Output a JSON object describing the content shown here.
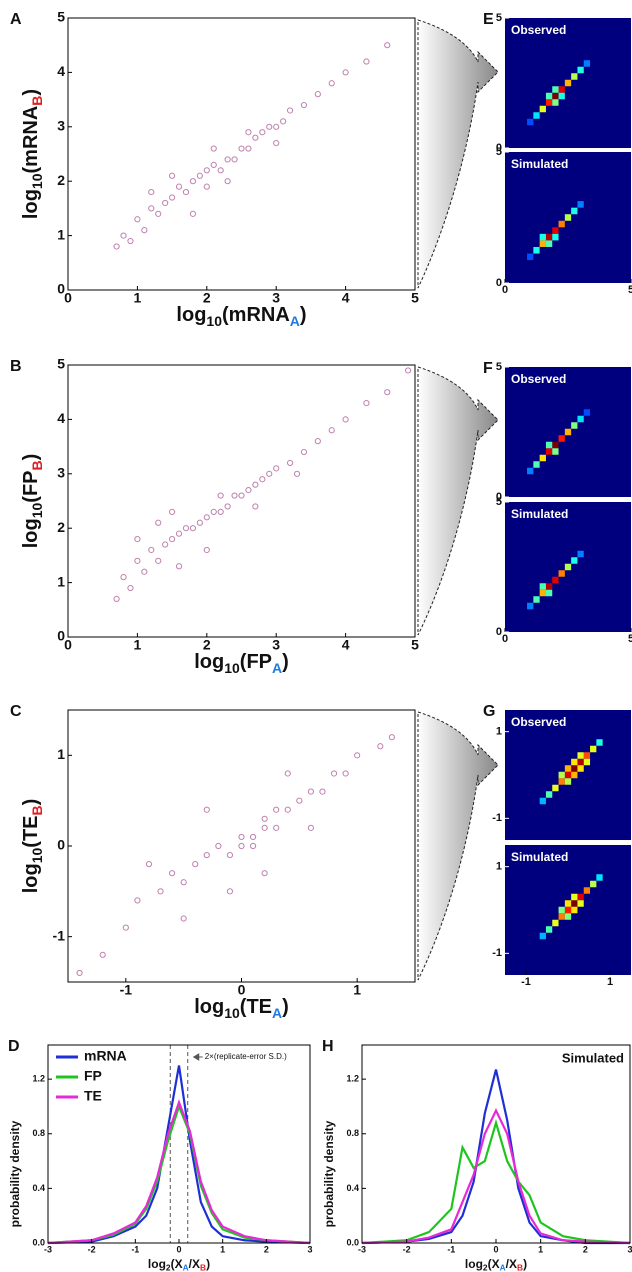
{
  "chart_data": [
    {
      "type": "scatter",
      "panel": "A",
      "xlim": [
        0,
        5
      ],
      "ylim": [
        0,
        5
      ],
      "xticks": [
        0,
        1,
        2,
        3,
        4,
        5
      ],
      "yticks": [
        0,
        1,
        2,
        3,
        4,
        5
      ],
      "color": "#8b1a6b",
      "x_label": [
        {
          "text": "log"
        },
        {
          "text": "10",
          "sub": true
        },
        {
          "text": "(mRNA"
        },
        {
          "text": "A",
          "sub": true,
          "color": "#1e7be0"
        },
        {
          "text": ")"
        }
      ],
      "y_label": [
        {
          "text": "log"
        },
        {
          "text": "10",
          "sub": true
        },
        {
          "text": "(mRNA"
        },
        {
          "text": "B",
          "sub": true,
          "color": "#e02020"
        },
        {
          "text": ")"
        }
      ],
      "x": [
        0.7,
        0.8,
        0.9,
        1.0,
        1.1,
        1.2,
        1.3,
        1.4,
        1.5,
        1.6,
        1.7,
        1.8,
        1.9,
        2.0,
        2.0,
        2.1,
        2.2,
        2.3,
        2.4,
        2.5,
        2.6,
        2.7,
        2.8,
        2.9,
        3.0,
        3.1,
        3.2,
        3.4,
        3.6,
        3.8,
        4.0,
        4.3,
        4.6,
        1.2,
        1.5,
        2.3,
        2.6,
        1.8,
        3.0,
        2.1
      ],
      "y": [
        0.8,
        1.0,
        0.9,
        1.3,
        1.1,
        1.5,
        1.4,
        1.6,
        1.7,
        1.9,
        1.8,
        2.0,
        2.1,
        2.2,
        1.9,
        2.3,
        2.2,
        2.4,
        2.4,
        2.6,
        2.6,
        2.8,
        2.9,
        3.0,
        3.0,
        3.1,
        3.3,
        3.4,
        3.6,
        3.8,
        4.0,
        4.2,
        4.5,
        1.8,
        2.1,
        2.0,
        2.9,
        1.4,
        2.7,
        2.6
      ]
    },
    {
      "type": "heatmap",
      "panel": "E",
      "title": "Observed",
      "xlim": [
        0,
        5
      ],
      "ylim": [
        0,
        5
      ],
      "yticks": [
        0,
        5
      ],
      "cells": [
        {
          "x": 1.0,
          "y": 1.0,
          "v": 0.2
        },
        {
          "x": 1.25,
          "y": 1.25,
          "v": 0.35
        },
        {
          "x": 1.5,
          "y": 1.5,
          "v": 0.6
        },
        {
          "x": 1.75,
          "y": 1.75,
          "v": 0.85
        },
        {
          "x": 2.0,
          "y": 2.0,
          "v": 1.0
        },
        {
          "x": 2.25,
          "y": 2.25,
          "v": 0.9
        },
        {
          "x": 2.5,
          "y": 2.5,
          "v": 0.7
        },
        {
          "x": 2.75,
          "y": 2.75,
          "v": 0.55
        },
        {
          "x": 3.0,
          "y": 3.0,
          "v": 0.4
        },
        {
          "x": 3.25,
          "y": 3.25,
          "v": 0.25
        },
        {
          "x": 1.75,
          "y": 2.0,
          "v": 0.45
        },
        {
          "x": 2.0,
          "y": 1.75,
          "v": 0.5
        },
        {
          "x": 2.25,
          "y": 2.0,
          "v": 0.4
        },
        {
          "x": 2.0,
          "y": 2.25,
          "v": 0.45
        }
      ]
    },
    {
      "type": "heatmap",
      "title": "Simulated",
      "xlim": [
        0,
        5
      ],
      "ylim": [
        0,
        5
      ],
      "yticks": [
        0,
        5
      ],
      "xticks": [
        0,
        5
      ],
      "cells": [
        {
          "x": 1.0,
          "y": 1.0,
          "v": 0.2
        },
        {
          "x": 1.25,
          "y": 1.25,
          "v": 0.4
        },
        {
          "x": 1.5,
          "y": 1.5,
          "v": 0.7
        },
        {
          "x": 1.75,
          "y": 1.75,
          "v": 0.95
        },
        {
          "x": 2.0,
          "y": 2.0,
          "v": 0.9
        },
        {
          "x": 2.25,
          "y": 2.25,
          "v": 0.75
        },
        {
          "x": 2.5,
          "y": 2.5,
          "v": 0.55
        },
        {
          "x": 2.75,
          "y": 2.75,
          "v": 0.4
        },
        {
          "x": 3.0,
          "y": 3.0,
          "v": 0.25
        },
        {
          "x": 1.5,
          "y": 1.75,
          "v": 0.4
        },
        {
          "x": 1.75,
          "y": 1.5,
          "v": 0.45
        },
        {
          "x": 2.0,
          "y": 1.75,
          "v": 0.4
        }
      ]
    },
    {
      "type": "scatter",
      "panel": "B",
      "xlim": [
        0,
        5
      ],
      "ylim": [
        0,
        5
      ],
      "xticks": [
        0,
        1,
        2,
        3,
        4,
        5
      ],
      "yticks": [
        0,
        1,
        2,
        3,
        4,
        5
      ],
      "color": "#8b1a6b",
      "x_label": [
        {
          "text": "log"
        },
        {
          "text": "10",
          "sub": true
        },
        {
          "text": "(FP"
        },
        {
          "text": "A",
          "sub": true,
          "color": "#1e7be0"
        },
        {
          "text": ")"
        }
      ],
      "y_label": [
        {
          "text": "log"
        },
        {
          "text": "10",
          "sub": true
        },
        {
          "text": "(FP"
        },
        {
          "text": "B",
          "sub": true,
          "color": "#e02020"
        },
        {
          "text": ")"
        }
      ],
      "x": [
        0.7,
        0.8,
        0.9,
        1.0,
        1.1,
        1.2,
        1.3,
        1.4,
        1.5,
        1.6,
        1.7,
        1.8,
        1.9,
        2.0,
        2.1,
        2.2,
        2.3,
        2.4,
        2.5,
        2.6,
        2.7,
        2.8,
        2.9,
        3.0,
        3.2,
        3.4,
        3.6,
        3.8,
        4.0,
        4.3,
        4.6,
        4.9,
        1.0,
        1.3,
        1.6,
        2.2,
        2.7,
        1.5,
        3.3,
        2.0
      ],
      "y": [
        0.7,
        1.1,
        0.9,
        1.4,
        1.2,
        1.6,
        1.4,
        1.7,
        1.8,
        1.9,
        2.0,
        2.0,
        2.1,
        2.2,
        2.3,
        2.3,
        2.4,
        2.6,
        2.6,
        2.7,
        2.8,
        2.9,
        3.0,
        3.1,
        3.2,
        3.4,
        3.6,
        3.8,
        4.0,
        4.3,
        4.5,
        4.9,
        1.8,
        2.1,
        1.3,
        2.6,
        2.4,
        2.3,
        3.0,
        1.6
      ]
    },
    {
      "type": "heatmap",
      "panel": "F",
      "title": "Observed",
      "xlim": [
        0,
        5
      ],
      "ylim": [
        0,
        5
      ],
      "yticks": [
        0,
        5
      ],
      "cells": [
        {
          "x": 1.0,
          "y": 1.0,
          "v": 0.25
        },
        {
          "x": 1.25,
          "y": 1.25,
          "v": 0.45
        },
        {
          "x": 1.5,
          "y": 1.5,
          "v": 0.65
        },
        {
          "x": 1.75,
          "y": 1.75,
          "v": 0.9
        },
        {
          "x": 2.0,
          "y": 2.0,
          "v": 1.0
        },
        {
          "x": 2.25,
          "y": 2.25,
          "v": 0.85
        },
        {
          "x": 2.5,
          "y": 2.5,
          "v": 0.7
        },
        {
          "x": 2.75,
          "y": 2.75,
          "v": 0.5
        },
        {
          "x": 3.0,
          "y": 3.0,
          "v": 0.35
        },
        {
          "x": 3.25,
          "y": 3.25,
          "v": 0.2
        },
        {
          "x": 2.0,
          "y": 1.75,
          "v": 0.5
        },
        {
          "x": 1.75,
          "y": 2.0,
          "v": 0.45
        }
      ]
    },
    {
      "type": "heatmap",
      "title": "Simulated",
      "xlim": [
        0,
        5
      ],
      "ylim": [
        0,
        5
      ],
      "yticks": [
        0,
        5
      ],
      "xticks": [
        0,
        5
      ],
      "cells": [
        {
          "x": 1.0,
          "y": 1.0,
          "v": 0.25
        },
        {
          "x": 1.25,
          "y": 1.25,
          "v": 0.45
        },
        {
          "x": 1.5,
          "y": 1.5,
          "v": 0.7
        },
        {
          "x": 1.75,
          "y": 1.75,
          "v": 0.95
        },
        {
          "x": 2.0,
          "y": 2.0,
          "v": 0.9
        },
        {
          "x": 2.25,
          "y": 2.25,
          "v": 0.75
        },
        {
          "x": 2.5,
          "y": 2.5,
          "v": 0.55
        },
        {
          "x": 2.75,
          "y": 2.75,
          "v": 0.4
        },
        {
          "x": 3.0,
          "y": 3.0,
          "v": 0.25
        },
        {
          "x": 1.5,
          "y": 1.75,
          "v": 0.45
        },
        {
          "x": 1.75,
          "y": 1.5,
          "v": 0.45
        }
      ]
    },
    {
      "type": "scatter",
      "panel": "C",
      "xlim": [
        -1.5,
        1.5
      ],
      "ylim": [
        -1.5,
        1.5
      ],
      "xticks": [
        -1,
        0,
        1
      ],
      "yticks": [
        -1,
        0,
        1
      ],
      "color": "#8b1a6b",
      "x_label": [
        {
          "text": "log"
        },
        {
          "text": "10",
          "sub": true
        },
        {
          "text": "(TE"
        },
        {
          "text": "A",
          "sub": true,
          "color": "#1e7be0"
        },
        {
          "text": ")"
        }
      ],
      "y_label": [
        {
          "text": "log"
        },
        {
          "text": "10",
          "sub": true
        },
        {
          "text": "(TE"
        },
        {
          "text": "B",
          "sub": true,
          "color": "#e02020"
        },
        {
          "text": ")"
        }
      ],
      "x": [
        -1.4,
        -1.2,
        -1.0,
        -0.9,
        -0.7,
        -0.6,
        -0.5,
        -0.4,
        -0.3,
        -0.2,
        -0.1,
        0.0,
        0.0,
        0.1,
        0.1,
        0.2,
        0.2,
        0.3,
        0.3,
        0.4,
        0.5,
        0.6,
        0.7,
        0.8,
        0.9,
        1.0,
        1.2,
        -0.8,
        -0.5,
        0.2,
        0.6,
        -0.3,
        0.4,
        1.3,
        -0.1
      ],
      "y": [
        -1.4,
        -1.2,
        -0.9,
        -0.6,
        -0.5,
        -0.3,
        -0.4,
        -0.2,
        -0.1,
        0.0,
        -0.1,
        0.0,
        0.1,
        0.1,
        0.0,
        0.2,
        0.3,
        0.2,
        0.4,
        0.4,
        0.5,
        0.6,
        0.6,
        0.8,
        0.8,
        1.0,
        1.1,
        -0.2,
        -0.8,
        -0.3,
        0.2,
        0.4,
        0.8,
        1.2,
        -0.5
      ]
    },
    {
      "type": "heatmap",
      "panel": "G",
      "title": "Observed",
      "xlim": [
        -1.5,
        1.5
      ],
      "ylim": [
        -1.5,
        1.5
      ],
      "yticks": [
        -1,
        1
      ],
      "cells": [
        {
          "x": -0.6,
          "y": -0.6,
          "v": 0.3
        },
        {
          "x": -0.45,
          "y": -0.45,
          "v": 0.45
        },
        {
          "x": -0.3,
          "y": -0.3,
          "v": 0.6
        },
        {
          "x": -0.15,
          "y": -0.15,
          "v": 0.75
        },
        {
          "x": 0.0,
          "y": 0.0,
          "v": 0.9
        },
        {
          "x": 0.15,
          "y": 0.15,
          "v": 1.0
        },
        {
          "x": 0.3,
          "y": 0.3,
          "v": 0.95
        },
        {
          "x": 0.45,
          "y": 0.45,
          "v": 0.8
        },
        {
          "x": 0.6,
          "y": 0.6,
          "v": 0.6
        },
        {
          "x": 0.75,
          "y": 0.75,
          "v": 0.4
        },
        {
          "x": 0.0,
          "y": 0.15,
          "v": 0.7
        },
        {
          "x": 0.15,
          "y": 0.0,
          "v": 0.7
        },
        {
          "x": 0.3,
          "y": 0.15,
          "v": 0.65
        },
        {
          "x": 0.15,
          "y": 0.3,
          "v": 0.65
        },
        {
          "x": -0.15,
          "y": 0.0,
          "v": 0.55
        },
        {
          "x": 0.0,
          "y": -0.15,
          "v": 0.55
        },
        {
          "x": 0.45,
          "y": 0.3,
          "v": 0.6
        },
        {
          "x": 0.3,
          "y": 0.45,
          "v": 0.6
        }
      ]
    },
    {
      "type": "heatmap",
      "title": "Simulated",
      "xlim": [
        -1.5,
        1.5
      ],
      "ylim": [
        -1.5,
        1.5
      ],
      "yticks": [
        -1,
        1
      ],
      "xticks": [
        -1,
        1
      ],
      "cells": [
        {
          "x": -0.6,
          "y": -0.6,
          "v": 0.3
        },
        {
          "x": -0.45,
          "y": -0.45,
          "v": 0.45
        },
        {
          "x": -0.3,
          "y": -0.3,
          "v": 0.6
        },
        {
          "x": -0.15,
          "y": -0.15,
          "v": 0.75
        },
        {
          "x": 0.0,
          "y": 0.0,
          "v": 0.85
        },
        {
          "x": 0.15,
          "y": 0.15,
          "v": 1.0
        },
        {
          "x": 0.3,
          "y": 0.3,
          "v": 0.9
        },
        {
          "x": 0.45,
          "y": 0.45,
          "v": 0.75
        },
        {
          "x": 0.6,
          "y": 0.6,
          "v": 0.55
        },
        {
          "x": 0.75,
          "y": 0.75,
          "v": 0.35
        },
        {
          "x": 0.0,
          "y": 0.15,
          "v": 0.65
        },
        {
          "x": 0.15,
          "y": 0.0,
          "v": 0.65
        },
        {
          "x": 0.3,
          "y": 0.15,
          "v": 0.6
        },
        {
          "x": 0.15,
          "y": 0.3,
          "v": 0.6
        },
        {
          "x": -0.15,
          "y": 0.0,
          "v": 0.5
        },
        {
          "x": 0.0,
          "y": -0.15,
          "v": 0.5
        }
      ]
    },
    {
      "type": "line",
      "panel": "D",
      "xlim": [
        -3,
        3
      ],
      "ylim": [
        0,
        1.45
      ],
      "xticks": [
        -3,
        -2,
        -1,
        0,
        1,
        2,
        3
      ],
      "yticks": [
        {
          "value": 0,
          "label": "0.0"
        },
        0.4,
        0.8,
        1.2
      ],
      "y_label": "probability density",
      "x_label": [
        {
          "text": "log"
        },
        {
          "text": "2",
          "sub": true
        },
        {
          "text": "(X"
        },
        {
          "text": "A",
          "sub": true,
          "color": "#1e7be0"
        },
        {
          "text": "/X"
        },
        {
          "text": "B",
          "sub": true,
          "color": "#e02020"
        },
        {
          "text": ")"
        }
      ],
      "vlines": [
        -0.2,
        0.2
      ],
      "annotation": "2×(replicate-error S.D.)",
      "legend": "upper left",
      "x": [
        -3,
        -2,
        -1.5,
        -1,
        -0.75,
        -0.5,
        -0.25,
        0,
        0.25,
        0.5,
        0.75,
        1,
        1.5,
        2,
        3
      ],
      "series": [
        {
          "name": "mRNA",
          "color": "#1f2fd6",
          "values": [
            0,
            0.01,
            0.05,
            0.12,
            0.2,
            0.4,
            0.85,
            1.3,
            0.75,
            0.3,
            0.12,
            0.05,
            0.02,
            0.01,
            0
          ]
        },
        {
          "name": "FP",
          "color": "#1fc41f",
          "values": [
            0,
            0.02,
            0.06,
            0.14,
            0.25,
            0.45,
            0.75,
            1.0,
            0.8,
            0.42,
            0.22,
            0.1,
            0.04,
            0.02,
            0
          ]
        },
        {
          "name": "TE",
          "color": "#e62ad6",
          "values": [
            0,
            0.02,
            0.07,
            0.15,
            0.27,
            0.48,
            0.8,
            1.03,
            0.82,
            0.45,
            0.24,
            0.12,
            0.05,
            0.02,
            0
          ]
        }
      ]
    },
    {
      "type": "line",
      "panel": "H",
      "xlim": [
        -3,
        3
      ],
      "ylim": [
        0,
        1.45
      ],
      "xticks": [
        -3,
        -2,
        -1,
        0,
        1,
        2,
        3
      ],
      "yticks": [
        {
          "value": 0,
          "label": "0.0"
        },
        0.4,
        0.8,
        1.2
      ],
      "y_label": "probability density",
      "x_label": [
        {
          "text": "log"
        },
        {
          "text": "2",
          "sub": true
        },
        {
          "text": "(X"
        },
        {
          "text": "A",
          "sub": true,
          "color": "#1e7be0"
        },
        {
          "text": "/X"
        },
        {
          "text": "B",
          "sub": true,
          "color": "#e02020"
        },
        {
          "text": ")"
        }
      ],
      "annotation": "Simulated",
      "x": [
        -3,
        -2,
        -1.5,
        -1,
        -0.75,
        -0.5,
        -0.25,
        0,
        0.25,
        0.5,
        0.75,
        1,
        1.5,
        2,
        3
      ],
      "series": [
        {
          "color": "#1f2fd6",
          "values": [
            0,
            0.01,
            0.03,
            0.08,
            0.2,
            0.45,
            0.95,
            1.27,
            0.9,
            0.4,
            0.15,
            0.05,
            0.02,
            0,
            0
          ]
        },
        {
          "color": "#1fc41f",
          "values": [
            0,
            0.02,
            0.08,
            0.25,
            0.7,
            0.55,
            0.6,
            0.88,
            0.6,
            0.45,
            0.35,
            0.15,
            0.05,
            0.02,
            0
          ]
        },
        {
          "color": "#e62ad6",
          "values": [
            0,
            0.01,
            0.04,
            0.1,
            0.3,
            0.5,
            0.8,
            0.97,
            0.8,
            0.45,
            0.2,
            0.07,
            0.02,
            0.01,
            0
          ]
        }
      ]
    }
  ]
}
